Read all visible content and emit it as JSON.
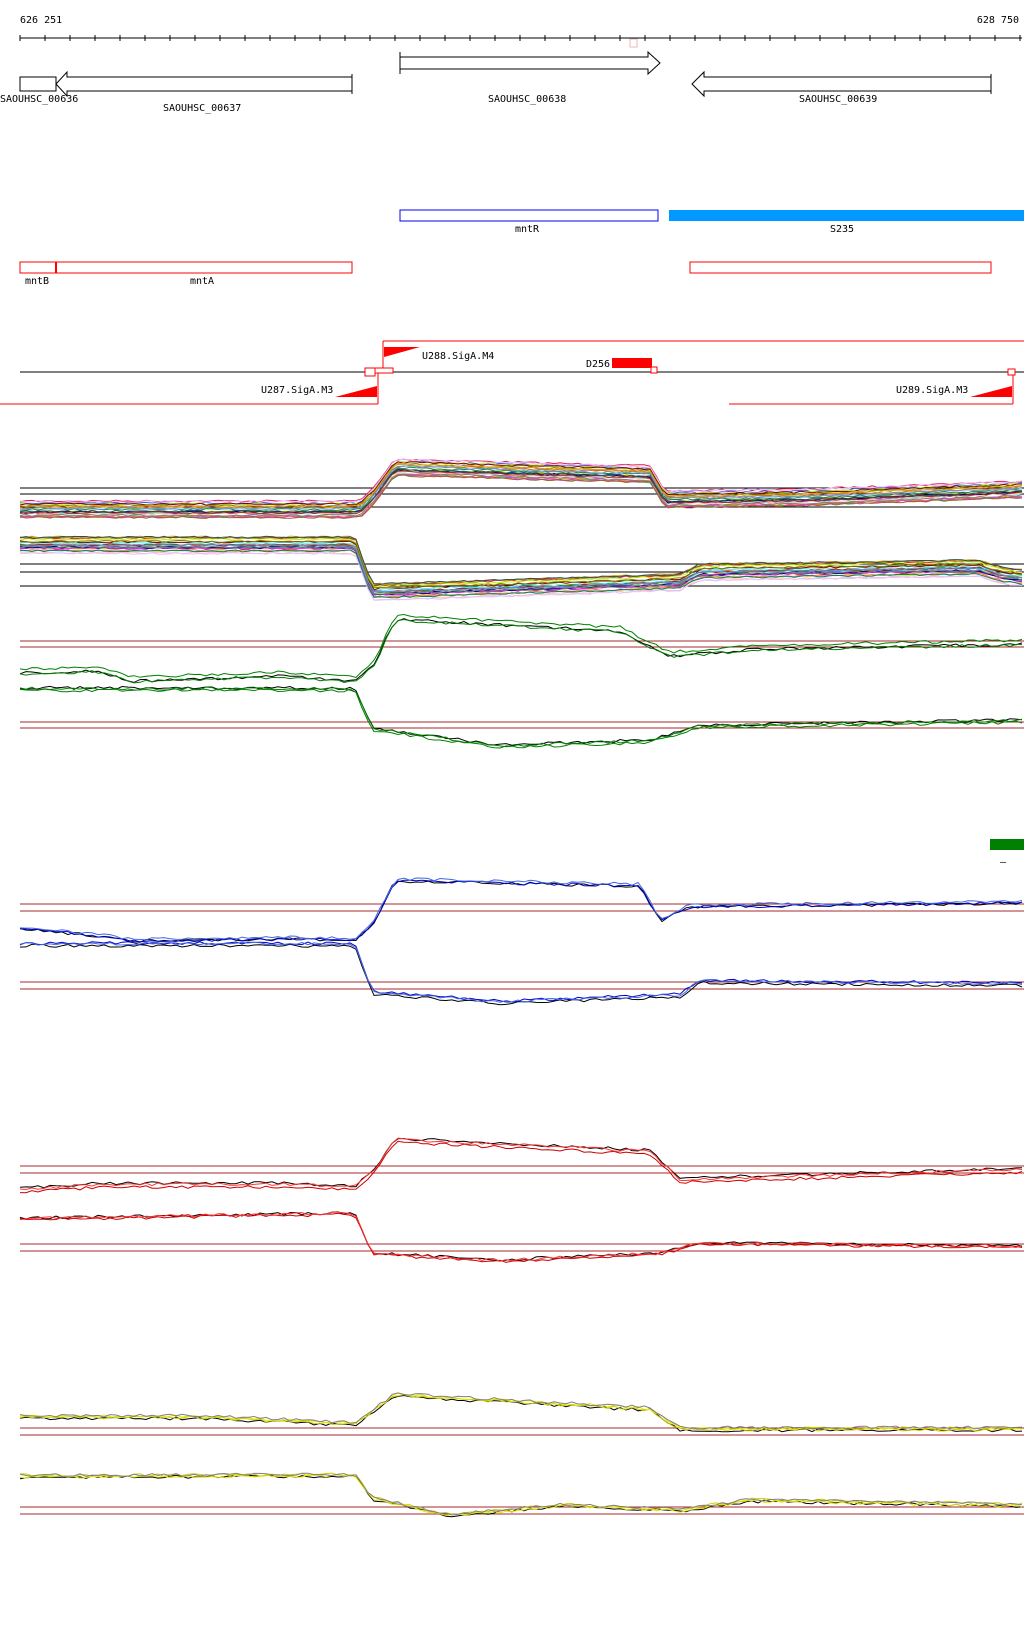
{
  "coords": {
    "start": "626 251",
    "end": "628 750"
  },
  "genes": [
    {
      "label": "SAOUHSC_00636"
    },
    {
      "label": "SAOUHSC_00637"
    },
    {
      "label": "SAOUHSC_00638"
    },
    {
      "label": "SAOUHSC_00639"
    }
  ],
  "annotations": {
    "mntR": "mntR",
    "S235": "S235",
    "mntB": "mntB",
    "mntA": "mntA"
  },
  "features": {
    "U288": "U288.SigA.M4",
    "U287": "U287.SigA.M3",
    "U289": "U289.SigA.M3",
    "D256": "D256"
  },
  "colors": {
    "arrow": "#000000",
    "mntR_box": "#0000ff",
    "S235_bar": "#0099ff",
    "red": "#ff0000",
    "green_bar": "#008000",
    "ref_line": "#a52a2a"
  },
  "extra_label": "–"
}
